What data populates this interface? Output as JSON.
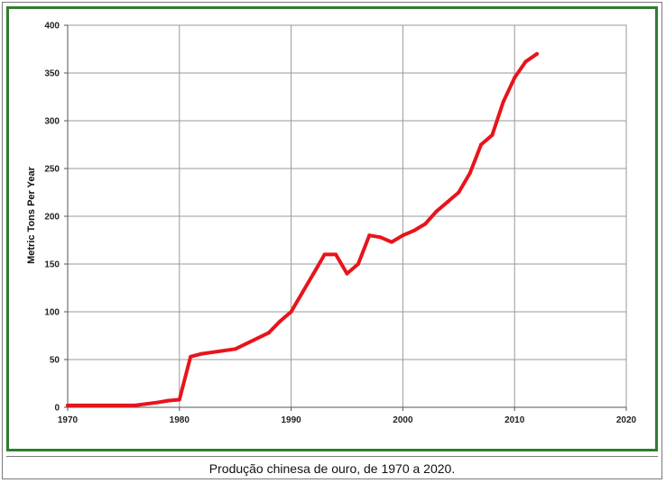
{
  "caption": "Produção chinesa de ouro, de 1970 a 2020.",
  "chart_data": {
    "type": "line",
    "title": "",
    "xlabel": "",
    "ylabel": "Metric Tons Per Year",
    "xlim": [
      1970,
      2020
    ],
    "ylim": [
      0,
      400
    ],
    "x_ticks": [
      "1970",
      "1980",
      "1990",
      "2000",
      "2010",
      "2020"
    ],
    "y_ticks": [
      "0",
      "50",
      "100",
      "150",
      "200",
      "250",
      "300",
      "350",
      "400"
    ],
    "grid": true,
    "line_color": "#e8141b",
    "series": [
      {
        "x": [
          1970,
          1976,
          1978,
          1979,
          1980,
          1981,
          1982,
          1985,
          1988,
          1989,
          1990,
          1991,
          1992,
          1993,
          1994,
          1995,
          1996,
          1997,
          1998,
          1999,
          2000,
          2001,
          2002,
          2003,
          2004,
          2005,
          2006,
          2007,
          2008,
          2009,
          2010,
          2011,
          2012
        ],
        "y": [
          2,
          2,
          5,
          7,
          8,
          53,
          56,
          61,
          78,
          90,
          100,
          120,
          140,
          160,
          160,
          140,
          150,
          180,
          178,
          173,
          180,
          185,
          192,
          205,
          215,
          225,
          245,
          275,
          285,
          320,
          345,
          362,
          370
        ]
      }
    ]
  }
}
